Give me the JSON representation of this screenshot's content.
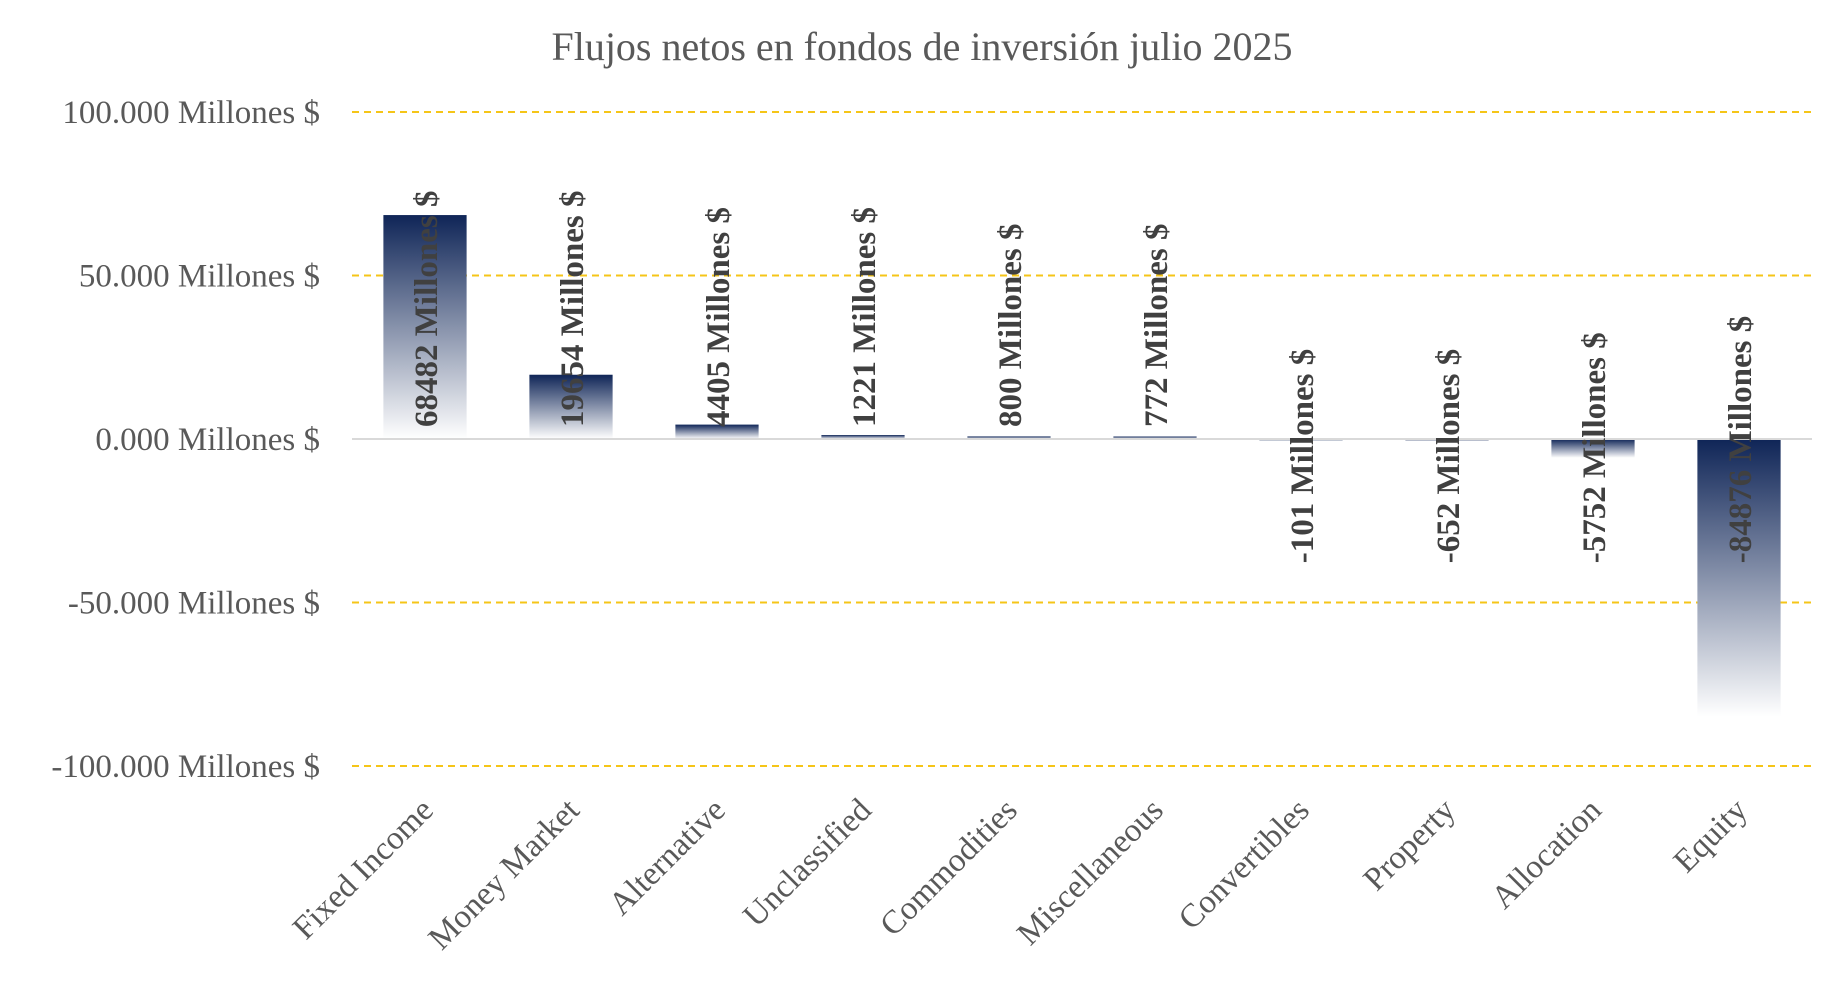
{
  "chart_data": {
    "type": "bar",
    "title": "Flujos netos en fondos de inversión julio 2025",
    "xlabel": "",
    "ylabel": "",
    "categories": [
      "Fixed Income",
      "Money Market",
      "Alternative",
      "Unclassified",
      "Commodities",
      "Miscellaneous",
      "Convertibles",
      "Property",
      "Allocation",
      "Equity"
    ],
    "values": [
      68482,
      19654,
      4405,
      1221,
      800,
      772,
      -101,
      -652,
      -5752,
      -84876
    ],
    "data_labels": [
      "68482 Millones $",
      "19654 Millones $",
      "4405 Millones $",
      "1221 Millones $",
      "800 Millones $",
      "772 Millones $",
      "-101 Millones $",
      "-652 Millones $",
      "-5752 Millones $",
      "-84876 Millones $"
    ],
    "yticks": [
      100000,
      50000,
      0,
      -50000,
      -100000
    ],
    "ytick_labels": [
      "100.000 Millones $",
      "50.000 Millones $",
      "0.000 Millones $",
      "-50.000 Millones $",
      "-100.000 Millones $"
    ],
    "ylim": [
      -100000,
      100000
    ],
    "grid": true,
    "legend": "none",
    "colors": {
      "bar_dark": "#0f2557",
      "bar_light": "#ffffff",
      "gridline": "#f5c518",
      "zero_axis": "#d9d9d9"
    }
  }
}
